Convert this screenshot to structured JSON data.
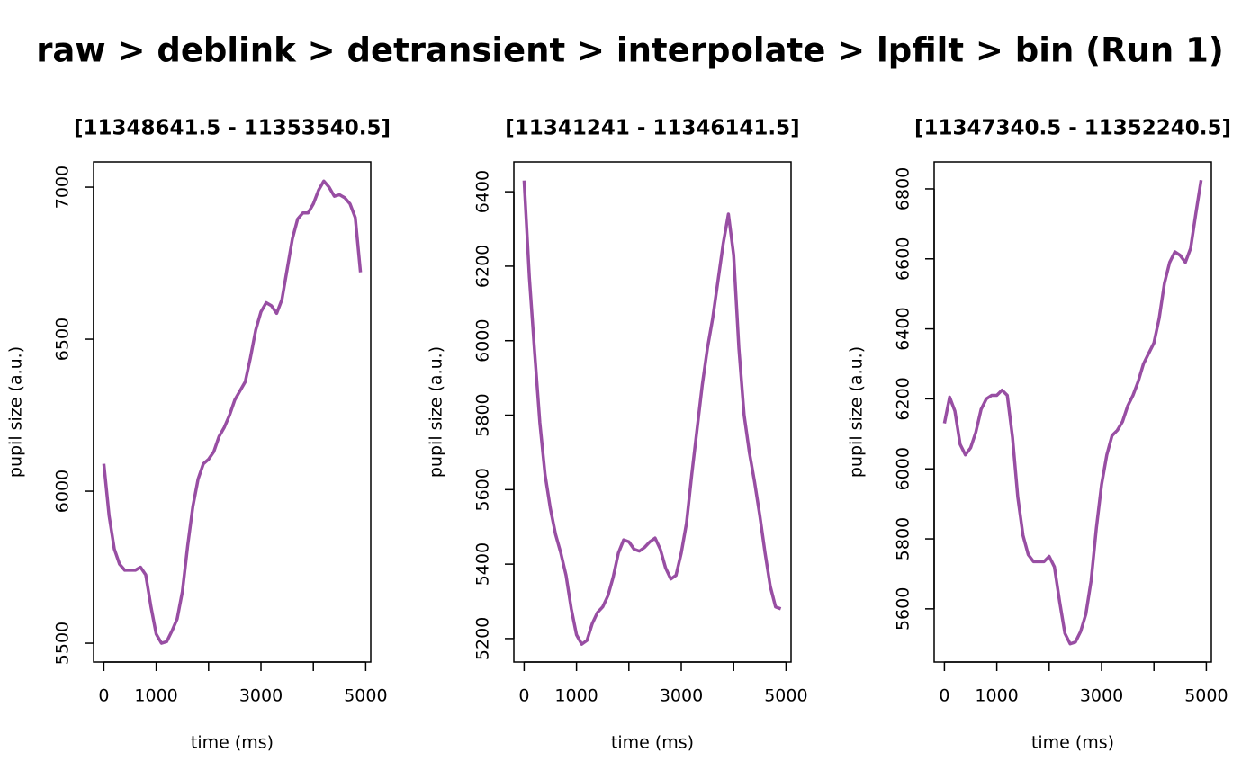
{
  "title": "raw > deblink > detransient > interpolate > lpfilt > bin (Run 1)",
  "chart_data": [
    {
      "type": "line",
      "title": "[11348641.5 - 11353540.5]",
      "x_label": "time (ms)",
      "y_label": "pupil size (a.u.)",
      "x": [
        0,
        100,
        200,
        300,
        400,
        500,
        600,
        700,
        800,
        900,
        1000,
        1100,
        1200,
        1300,
        1400,
        1500,
        1600,
        1700,
        1800,
        1900,
        2000,
        2100,
        2200,
        2300,
        2400,
        2500,
        2600,
        2700,
        2800,
        2900,
        3000,
        3100,
        3200,
        3300,
        3400,
        3500,
        3600,
        3700,
        3800,
        3900,
        4000,
        4100,
        4200,
        4300,
        4400,
        4500,
        4600,
        4700,
        4800,
        4900
      ],
      "values": [
        6090,
        5920,
        5810,
        5760,
        5740,
        5740,
        5740,
        5750,
        5725,
        5620,
        5530,
        5500,
        5505,
        5540,
        5580,
        5670,
        5820,
        5950,
        6040,
        6090,
        6105,
        6130,
        6180,
        6210,
        6250,
        6300,
        6330,
        6360,
        6440,
        6530,
        6590,
        6620,
        6610,
        6585,
        6630,
        6730,
        6830,
        6895,
        6915,
        6915,
        6945,
        6990,
        7020,
        7000,
        6970,
        6975,
        6965,
        6945,
        6900,
        6720
      ],
      "color": "#984EA3",
      "xlim": [
        -196,
        5096
      ],
      "ylim": [
        5438,
        7083
      ],
      "xticks": [
        0,
        1000,
        {
          "value": 2000,
          "label": null
        },
        3000,
        {
          "value": 4000,
          "label": null
        },
        5000
      ],
      "yticks": [
        5500,
        6000,
        6500,
        7000
      ]
    },
    {
      "type": "line",
      "title": "[11341241 - 11346141.5]",
      "x_label": "time (ms)",
      "y_label": "pupil size (a.u.)",
      "x": [
        0,
        100,
        200,
        300,
        400,
        500,
        600,
        700,
        800,
        900,
        1000,
        1100,
        1200,
        1300,
        1400,
        1500,
        1600,
        1700,
        1800,
        1900,
        2000,
        2100,
        2200,
        2300,
        2400,
        2500,
        2600,
        2700,
        2800,
        2900,
        3000,
        3100,
        3200,
        3300,
        3400,
        3500,
        3600,
        3700,
        3800,
        3900,
        4000,
        4100,
        4200,
        4300,
        4400,
        4500,
        4600,
        4700,
        4800,
        4900
      ],
      "values": [
        6430,
        6170,
        5970,
        5780,
        5640,
        5550,
        5480,
        5430,
        5370,
        5280,
        5210,
        5185,
        5195,
        5240,
        5270,
        5285,
        5315,
        5365,
        5430,
        5465,
        5460,
        5440,
        5435,
        5445,
        5460,
        5470,
        5440,
        5390,
        5360,
        5370,
        5430,
        5510,
        5640,
        5760,
        5880,
        5980,
        6060,
        6160,
        6260,
        6340,
        6230,
        5980,
        5800,
        5700,
        5620,
        5530,
        5430,
        5340,
        5285,
        5280
      ],
      "color": "#984EA3",
      "xlim": [
        -196,
        5096
      ],
      "ylim": [
        5137,
        6480
      ],
      "xticks": [
        0,
        1000,
        {
          "value": 2000,
          "label": null
        },
        3000,
        {
          "value": 4000,
          "label": null
        },
        5000
      ],
      "yticks": [
        5200,
        5400,
        5600,
        5800,
        6000,
        6200,
        6400
      ]
    },
    {
      "type": "line",
      "title": "[11347340.5 - 11352240.5]",
      "x_label": "time (ms)",
      "y_label": "pupil size (a.u.)",
      "x": [
        0,
        100,
        200,
        300,
        400,
        500,
        600,
        700,
        800,
        900,
        1000,
        1100,
        1200,
        1300,
        1400,
        1500,
        1600,
        1700,
        1800,
        1900,
        2000,
        2100,
        2200,
        2300,
        2400,
        2500,
        2600,
        2700,
        2800,
        2900,
        3000,
        3100,
        3200,
        3300,
        3400,
        3500,
        3600,
        3700,
        3800,
        3900,
        4000,
        4100,
        4200,
        4300,
        4400,
        4500,
        4600,
        4700,
        4800,
        4900
      ],
      "values": [
        6130,
        6205,
        6165,
        6070,
        6040,
        6060,
        6105,
        6170,
        6200,
        6210,
        6210,
        6225,
        6210,
        6090,
        5920,
        5810,
        5755,
        5735,
        5735,
        5735,
        5750,
        5720,
        5620,
        5530,
        5500,
        5505,
        5535,
        5585,
        5680,
        5830,
        5955,
        6040,
        6095,
        6110,
        6135,
        6180,
        6210,
        6250,
        6300,
        6330,
        6360,
        6430,
        6530,
        6590,
        6620,
        6610,
        6590,
        6630,
        6730,
        6825
      ],
      "color": "#984EA3",
      "xlim": [
        -196,
        5096
      ],
      "ylim": [
        5448,
        6877
      ],
      "xticks": [
        0,
        1000,
        {
          "value": 2000,
          "label": null
        },
        3000,
        {
          "value": 4000,
          "label": null
        },
        5000
      ],
      "yticks": [
        5600,
        5800,
        6000,
        6200,
        6400,
        6600,
        6800
      ]
    }
  ]
}
